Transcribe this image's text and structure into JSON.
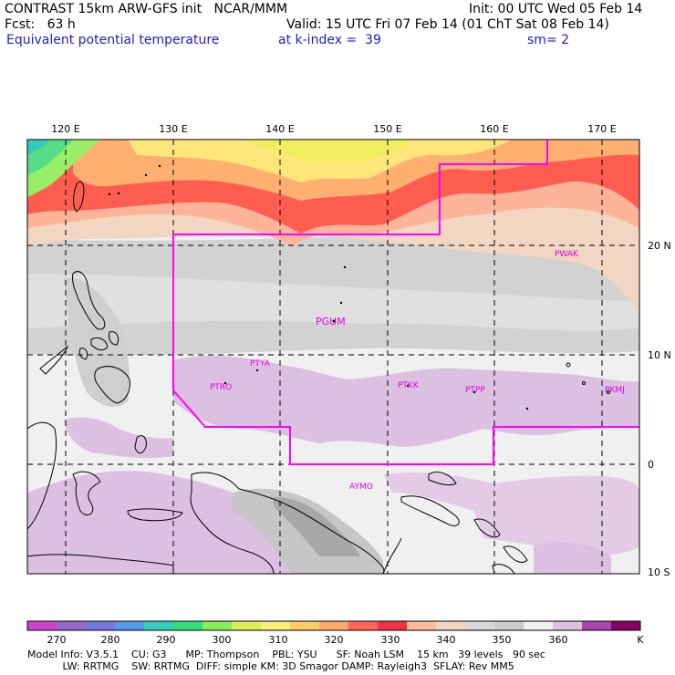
{
  "header": {
    "line1_left": "CONTRAST 15km ARW-GFS init   NCAR/MMM",
    "line1_right": "Init: 00 UTC Wed 05 Feb 14",
    "line2_left": "Fcst:   63 h",
    "line2_right": "Valid: 15 UTC Fri 07 Feb 14 (01 ChT Sat 08 Feb 14)",
    "line3_left": "Equivalent potential temperature",
    "line3_mid": "at k-index =  39",
    "line3_right": "sm= 2"
  },
  "map": {
    "lon_labels": [
      "120 E",
      "130 E",
      "140 E",
      "150 E",
      "160 E",
      "170 E"
    ],
    "lat_labels": [
      "20 N",
      "10 N",
      "0",
      "10 S"
    ],
    "stations": [
      "PWAK",
      "PGUM",
      "PTYA",
      "PTRO",
      "PTKK",
      "PTPP",
      "PKMJ",
      "AYMO"
    ],
    "colors": {
      "boundary": "#ff00ff",
      "coast": "#000000",
      "grid": "#000000",
      "station": "#e000e0"
    }
  },
  "colorbar": {
    "labels": [
      "270",
      "280",
      "290",
      "300",
      "310",
      "320",
      "330",
      "340",
      "350",
      "360",
      "K"
    ],
    "colors": [
      "#cc44cc",
      "#9966cc",
      "#7777e0",
      "#5599ee",
      "#33ccbb",
      "#33dd77",
      "#88ee55",
      "#ddee55",
      "#ffee77",
      "#ffcc66",
      "#ffaa66",
      "#ff6655",
      "#ee3344",
      "#ffbb99",
      "#f2d6c2",
      "#d8d8d8",
      "#cccccc",
      "#f0f0f0",
      "#ddc0e0",
      "#aa44aa",
      "#880066"
    ]
  },
  "footer": {
    "line1": "Model Info: V3.5.1    CU: G3      MP: Thompson    PBL: YSU      SF: Noah LSM    15 km   39 levels   90 sec",
    "line2": "           LW: RRTMG    SW: RRTMG  DIFF: simple KM: 3D Smagor DAMP: Rayleigh3  SFLAY: Rev MM5"
  }
}
